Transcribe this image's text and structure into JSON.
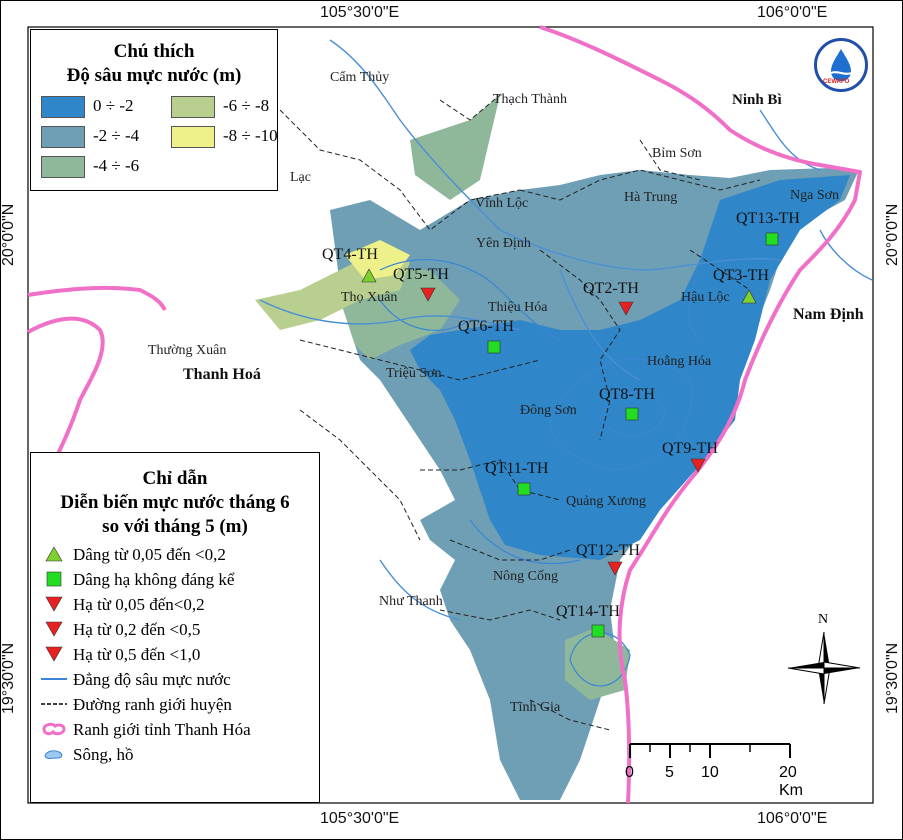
{
  "coords": {
    "top": [
      "105°30'0\"E",
      "106°0'0\"E"
    ],
    "bottom": [
      "105°30'0\"E",
      "106°0'0\"E"
    ],
    "left": [
      "20°0'0\"N",
      "19°30'0\"N"
    ],
    "right": [
      "20°0'0\"N",
      "19°30'0\"N"
    ]
  },
  "legend_depth": {
    "title1": "Chú thích",
    "title2": "Độ sâu mực nước (m)",
    "classes": [
      {
        "label": "0 ÷ -2",
        "color": "#2f86c8"
      },
      {
        "label": "-2 ÷ -4",
        "color": "#6f9fb4"
      },
      {
        "label": "-4 ÷ -6",
        "color": "#8fb89a"
      },
      {
        "label": "-6 ÷ -8",
        "color": "#b8cf8f"
      },
      {
        "label": "-8 ÷ -10",
        "color": "#eef08a"
      }
    ]
  },
  "legend_change": {
    "title1": "Chỉ dẫn",
    "title2": "Diễn biến mực nước tháng 6",
    "title3": "so với tháng 5 (m)",
    "items": [
      {
        "label": "Dâng từ 0,05 đến <0,2",
        "symbol": "triangle-up",
        "color": "#7dd12f"
      },
      {
        "label": "Dâng hạ không đáng kể",
        "symbol": "square",
        "color": "#22dd22"
      },
      {
        "label": "Hạ từ 0,05 đến<0,2",
        "symbol": "triangle-down",
        "color": "#e82020"
      },
      {
        "label": "Hạ từ 0,2 đến <0,5",
        "symbol": "triangle-down",
        "color": "#e82020"
      },
      {
        "label": "Hạ từ 0,5 đến <1,0",
        "symbol": "triangle-down",
        "color": "#e82020"
      },
      {
        "label": "Đẳng độ sâu mực nước",
        "symbol": "line-blue",
        "color": "#3a86d6"
      },
      {
        "label": "Đường ranh giới huyện",
        "symbol": "line-dashed",
        "color": "#000000"
      },
      {
        "label": "Ranh giới tỉnh Thanh Hóa",
        "symbol": "province-border",
        "color": "#f070c8"
      },
      {
        "label": "Sông, hồ",
        "symbol": "river",
        "color": "#9ec9f0"
      }
    ]
  },
  "places": {
    "cam_thuy": "Cẩm Thủy",
    "thach_thanh": "Thạch Thành",
    "ninh_binh": "Ninh Bì",
    "bim_son": "Bỉm Sơn",
    "lac": "Lạc",
    "vinh_loc": "Vĩnh Lộc",
    "ha_trung": "Hà Trung",
    "nga_son": "Nga Sơn",
    "yen_dinh": "Yên Định",
    "tho_xuan": "Thọ Xuân",
    "thieu_hoa": "Thiệu Hóa",
    "hau_loc": "Hậu Lộc",
    "nam_dinh": "Nam Định",
    "thuong_xuan": "Thường Xuân",
    "thanh_hoa": "Thanh Hoá",
    "trieu_son": "Triệu Sơn",
    "hoang_hoa": "Hoằng Hóa",
    "dong_son": "Đông Sơn",
    "quang_xuong": "Quảng Xương",
    "nong_cong": "Nông Cống",
    "nhu_thanh": "Như Thanh",
    "tinh_gia": "Tĩnh Gia"
  },
  "stations": [
    {
      "id": "QT4-TH",
      "symbol": "triangle-up"
    },
    {
      "id": "QT5-TH",
      "symbol": "triangle-down"
    },
    {
      "id": "QT2-TH",
      "symbol": "triangle-down"
    },
    {
      "id": "QT13-TH",
      "symbol": "square"
    },
    {
      "id": "QT3-TH",
      "symbol": "triangle-up"
    },
    {
      "id": "QT6-TH",
      "symbol": "square"
    },
    {
      "id": "QT8-TH",
      "symbol": "square"
    },
    {
      "id": "QT9-TH",
      "symbol": "triangle-down"
    },
    {
      "id": "QT11-TH",
      "symbol": "square"
    },
    {
      "id": "QT12-TH",
      "symbol": "triangle-down"
    },
    {
      "id": "QT14-TH",
      "symbol": "square"
    }
  ],
  "scale_bar": {
    "ticks": [
      "0",
      "5",
      "10",
      "20 Km"
    ]
  },
  "north_arrow": {
    "label": "N"
  },
  "logo": {
    "text": "CEWAFO"
  }
}
